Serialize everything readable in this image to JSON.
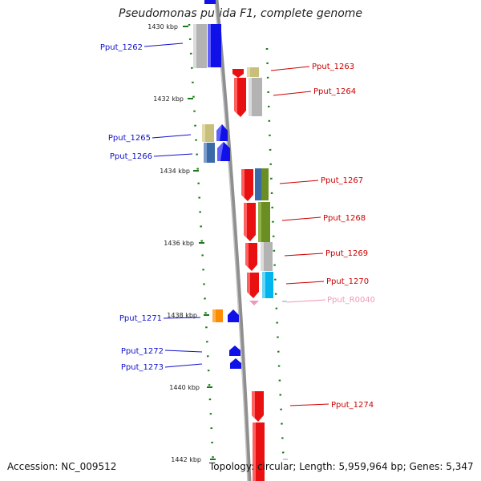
{
  "title": "Pseudomonas putida F1, complete genome",
  "footer": {
    "accession": "Accession: NC_009512",
    "summary": "Topology: circular; Length: 5,959,964 bp; Genes: 5,347"
  },
  "colors": {
    "forward_gene": "#1010e8",
    "reverse_gene": "#e81010",
    "rna_gene": "#ee99bb",
    "tick": "#1a7a1a",
    "backbone": "#909090"
  },
  "scale": {
    "unit": "kbp",
    "labels": [
      "1430 kbp",
      "1432 kbp",
      "1434 kbp",
      "1436 kbp",
      "1438 kbp",
      "1440 kbp",
      "1442 kbp"
    ]
  },
  "genes": [
    {
      "id": "Pput_1262",
      "strand": "forward"
    },
    {
      "id": "Pput_1263",
      "strand": "reverse"
    },
    {
      "id": "Pput_1264",
      "strand": "reverse"
    },
    {
      "id": "Pput_1265",
      "strand": "forward"
    },
    {
      "id": "Pput_1266",
      "strand": "forward"
    },
    {
      "id": "Pput_1267",
      "strand": "reverse"
    },
    {
      "id": "Pput_1268",
      "strand": "reverse"
    },
    {
      "id": "Pput_1269",
      "strand": "reverse"
    },
    {
      "id": "Pput_1270",
      "strand": "reverse"
    },
    {
      "id": "Pput_R0040",
      "strand": "reverse"
    },
    {
      "id": "Pput_1271",
      "strand": "forward"
    },
    {
      "id": "Pput_1272",
      "strand": "forward"
    },
    {
      "id": "Pput_1273",
      "strand": "forward"
    },
    {
      "id": "Pput_1274",
      "strand": "reverse"
    }
  ]
}
